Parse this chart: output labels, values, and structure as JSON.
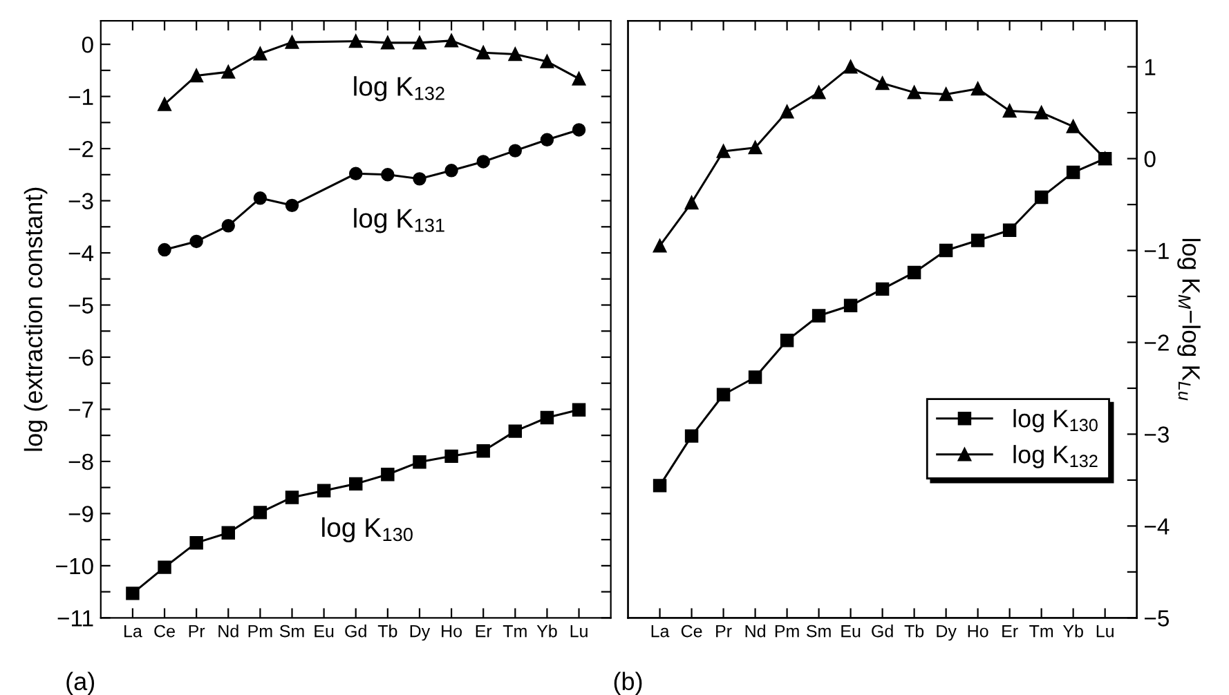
{
  "chart_data": [
    {
      "type": "line",
      "ylabel": "log (extraction constant)",
      "categories": [
        "La",
        "Ce",
        "Pr",
        "Nd",
        "Pm",
        "Sm",
        "Eu",
        "Gd",
        "Tb",
        "Dy",
        "Ho",
        "Er",
        "Tm",
        "Yb",
        "Lu"
      ],
      "series": [
        {
          "name": "log K$_{130}$",
          "color": "#000000",
          "marker": "square",
          "values": [
            -10.53,
            -10.03,
            -9.56,
            -9.37,
            -8.98,
            -8.69,
            -8.56,
            -8.43,
            -8.25,
            -8.01,
            -7.9,
            -7.8,
            -7.42,
            -7.16,
            -7.01
          ]
        },
        {
          "name": "log K$_{131}$",
          "color": "#000000",
          "marker": "circle",
          "values": [
            null,
            -3.94,
            -3.78,
            -3.48,
            -2.95,
            -3.09,
            null,
            -2.48,
            -2.5,
            -2.58,
            -2.42,
            -2.25,
            -2.04,
            -1.83,
            -1.64
          ]
        },
        {
          "name": "log K$_{132}$",
          "color": "#000000",
          "marker": "triangle",
          "values": [
            null,
            -1.15,
            -0.6,
            -0.53,
            -0.18,
            0.04,
            null,
            0.06,
            0.03,
            0.03,
            0.07,
            -0.16,
            -0.19,
            -0.33,
            -0.66
          ]
        }
      ],
      "ylim": [
        -11,
        0.45
      ],
      "yticks": [
        -11,
        {
          "value": -10.5,
          "label": null
        },
        -10,
        {
          "value": -9.5,
          "label": null
        },
        -9,
        {
          "value": -8.5,
          "label": null
        },
        -8,
        {
          "value": -7.5,
          "label": null
        },
        -7,
        {
          "value": -6.5,
          "label": null
        },
        -6,
        {
          "value": -5.5,
          "label": null
        },
        -5,
        {
          "value": -4.5,
          "label": null
        },
        -4,
        {
          "value": -3.5,
          "label": null
        },
        -3,
        {
          "value": -2.5,
          "label": null
        },
        -2,
        {
          "value": -1.5,
          "label": null
        },
        -1,
        {
          "value": -0.5,
          "label": null
        },
        0
      ],
      "annotations": [
        "(a)"
      ],
      "grid": false,
      "legend": false,
      "line_style": "solid"
    },
    {
      "type": "line",
      "y2label": "log K$_{M}$−log K$_{Lu}$",
      "categories": [
        "La",
        "Ce",
        "Pr",
        "Nd",
        "Pm",
        "Sm",
        "Eu",
        "Gd",
        "Tb",
        "Dy",
        "Ho",
        "Er",
        "Tm",
        "Yb",
        "Lu"
      ],
      "series": [
        {
          "name": "log K$_{130}$",
          "color": "#000000",
          "marker": "square",
          "axis": "y2",
          "values": [
            -3.56,
            -3.02,
            -2.57,
            -2.38,
            -1.98,
            -1.71,
            -1.6,
            -1.42,
            -1.24,
            -1.0,
            -0.89,
            -0.78,
            -0.42,
            -0.15,
            0
          ]
        },
        {
          "name": "log K$_{132}$",
          "color": "#000000",
          "marker": "triangle",
          "axis": "y2",
          "values": [
            -0.95,
            -0.48,
            0.08,
            0.12,
            0.51,
            0.72,
            1.0,
            0.82,
            0.72,
            0.7,
            0.76,
            0.52,
            0.5,
            0.35,
            0
          ]
        }
      ],
      "y2lim": [
        -5,
        1.5
      ],
      "y2ticks": [
        -5,
        {
          "value": -4.5,
          "label": null
        },
        -4,
        {
          "value": -3.5,
          "label": null
        },
        -3,
        {
          "value": -2.5,
          "label": null
        },
        -2,
        {
          "value": -1.5,
          "label": null
        },
        -1,
        {
          "value": -0.5,
          "label": null
        },
        0,
        {
          "value": 0.5,
          "label": null
        },
        1
      ],
      "annotations": [
        "(b)"
      ],
      "grid": false,
      "legend": "right",
      "line_style": "solid"
    }
  ]
}
